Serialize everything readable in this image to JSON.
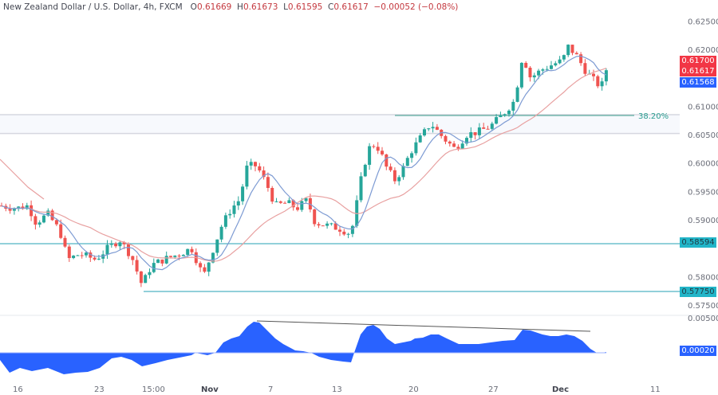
{
  "header": {
    "symbol": "New Zealand Dollar / U.S. Dollar, 4h, FXCM",
    "open_label": "O",
    "open": "0.61669",
    "high_label": "H",
    "high": "0.61673",
    "low_label": "L",
    "low": "0.61595",
    "close_label": "C",
    "close": "0.61617",
    "change": "−0.00052 (−0.08%)"
  },
  "price_tags": {
    "ma_red": "0.61700",
    "last": "0.61617",
    "ma_blue": "0.61568",
    "support1": "0.58594",
    "support2": "0.57750",
    "osc": "0.00020"
  },
  "fib": {
    "label": "38.20%"
  },
  "colors": {
    "up": "#26a69a",
    "down": "#ef5350",
    "ma_fast": "#7d9bd3",
    "ma_slow": "#e8a0a0",
    "level": "#26a0b4",
    "osc": "#2962ff",
    "tag_red": "#f23645",
    "tag_blue": "#2962ff",
    "tag_teal": "#22b5c8"
  },
  "chart_data": {
    "type": "candlestick",
    "title": "New Zealand Dollar / U.S. Dollar, 4h, FXCM",
    "y_axis_ticks": [
      "0.62500",
      "0.62000",
      "0.61000",
      "0.60500",
      "0.60000",
      "0.59500",
      "0.59000",
      "0.58000",
      "0.57500"
    ],
    "x_axis_ticks": [
      "16",
      "23",
      "15:00",
      "Nov",
      "7",
      "13",
      "20",
      "27",
      "Dec",
      "11"
    ],
    "horizontal_levels": [
      {
        "price": 0.58594,
        "label": "0.58594"
      },
      {
        "price": 0.5775,
        "label": "0.57750"
      },
      {
        "price": 0.6085,
        "label": "38.20%",
        "type": "fibonacci"
      }
    ],
    "fib_zone": [
      0.6052,
      0.6085
    ],
    "last_close": 0.61617,
    "moving_averages": [
      {
        "name": "fast",
        "value": 0.61568,
        "color": "#7d9bd3"
      },
      {
        "name": "slow",
        "value": 0.617,
        "color": "#e8a0a0"
      }
    ],
    "approx_path": [
      {
        "x": "16",
        "close": 0.5915
      },
      {
        "x": "23",
        "close": 0.5835
      },
      {
        "x": "15:00",
        "close": 0.579
      },
      {
        "x": "Nov",
        "close": 0.5815
      },
      {
        "x": "7",
        "close": 0.5985
      },
      {
        "x": "13",
        "close": 0.5885
      },
      {
        "x": "20",
        "close": 0.602
      },
      {
        "x": "27",
        "close": 0.609
      },
      {
        "x": "Dec",
        "close": 0.6195
      },
      {
        "x": "end",
        "close": 0.61617
      }
    ],
    "oscillator": {
      "last_value": 0.0002,
      "ticks": [
        "0.00500"
      ],
      "divergence_line": true
    }
  }
}
